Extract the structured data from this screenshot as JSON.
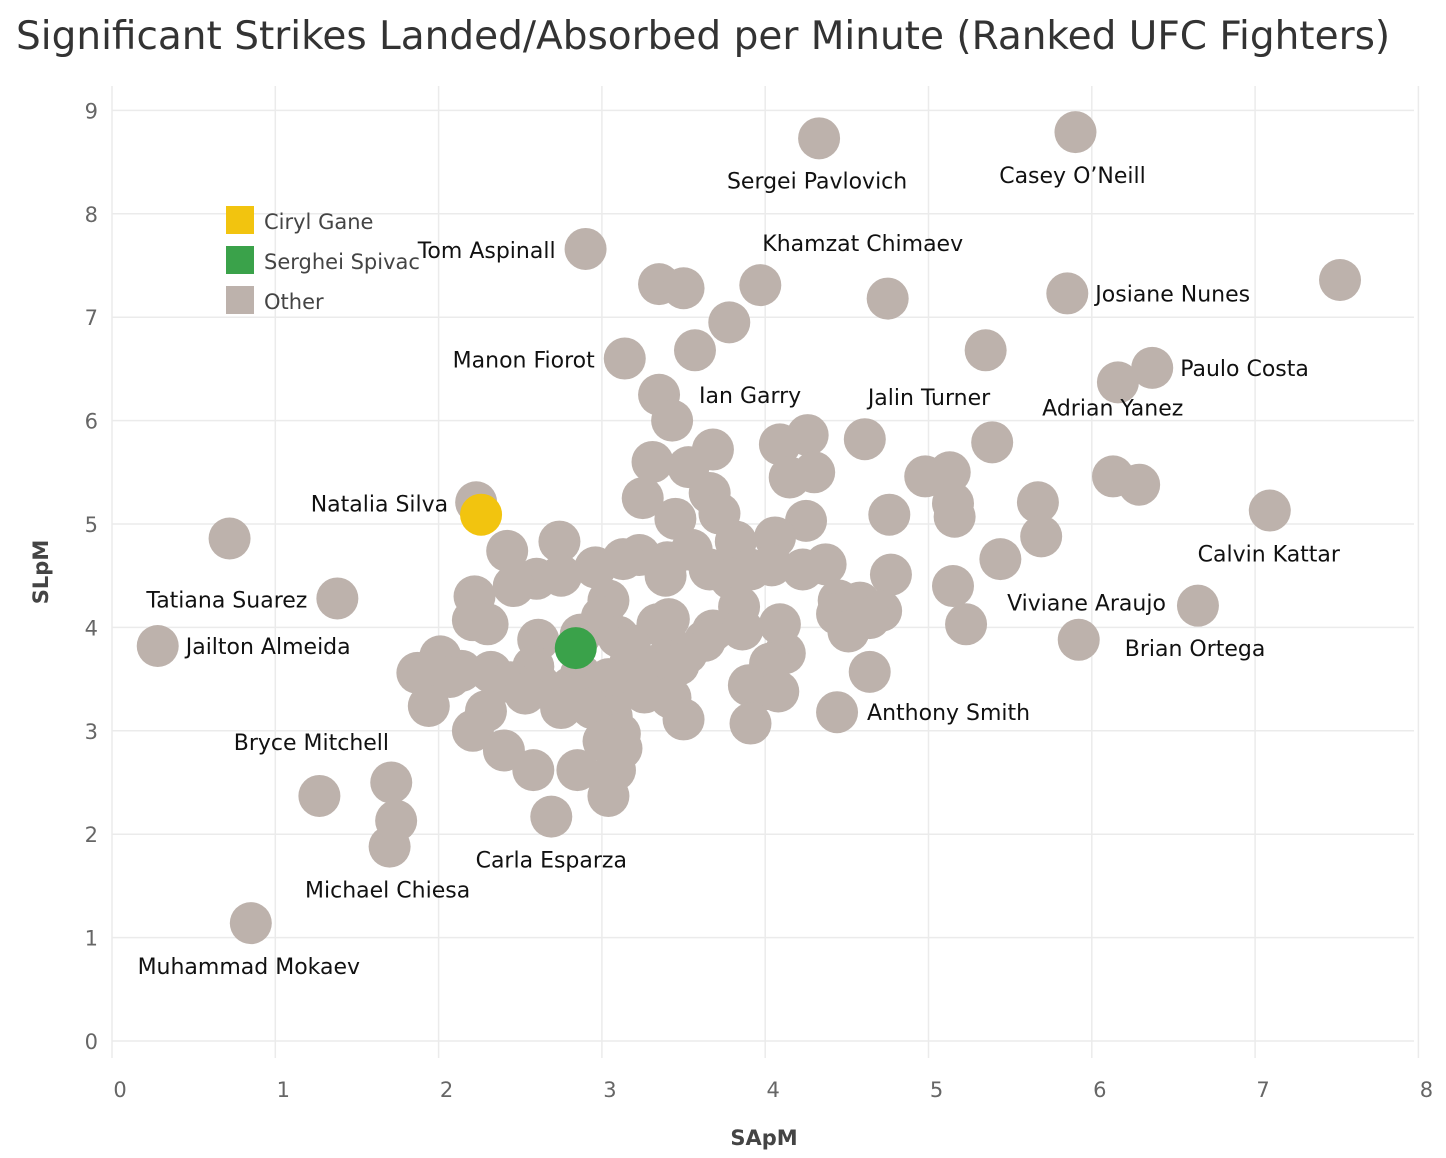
{
  "colors": {
    "Ciryl Gane": "#f2c40f",
    "Serghei Spivac": "#3aa24a",
    "Other": "#bdb2ac",
    "grid": "#ebebeb"
  },
  "chart_data": {
    "type": "scatter",
    "title": "Significant Strikes Landed/Absorbed per Minute (Ranked UFC Fighters)",
    "xlabel": "SApM",
    "ylabel": "SLpM",
    "xlim": [
      0,
      8
    ],
    "ylim": [
      0,
      9
    ],
    "x_ticks": [
      "0",
      "1",
      "2",
      "3",
      "4",
      "5",
      "6",
      "7",
      "8"
    ],
    "y_ticks": [
      "0",
      "1",
      "2",
      "3",
      "4",
      "5",
      "6",
      "7",
      "8",
      "9"
    ],
    "grid": true,
    "legend": {
      "position": "top-left",
      "entries": [
        "Ciryl Gane",
        "Serghei Spivac",
        "Other"
      ]
    },
    "series": [
      {
        "name": "Ciryl Gane",
        "points": [
          {
            "x": 2.26,
            "y": 5.09
          }
        ]
      },
      {
        "name": "Serghei Spivac",
        "points": [
          {
            "x": 2.84,
            "y": 3.8
          }
        ]
      },
      {
        "name": "Other",
        "points": [
          {
            "x": 4.33,
            "y": 8.73,
            "label": "Sergei Pavlovich"
          },
          {
            "x": 5.9,
            "y": 8.79,
            "label": "Casey O’Neill"
          },
          {
            "x": 2.9,
            "y": 7.66,
            "label": "Tom Aspinall"
          },
          {
            "x": 3.97,
            "y": 7.31,
            "label": "Khamzat Chimaev"
          },
          {
            "x": 5.85,
            "y": 7.23,
            "label": "Josiane Nunes"
          },
          {
            "x": 7.52,
            "y": 7.36
          },
          {
            "x": 3.14,
            "y": 6.6,
            "label": "Manon Fiorot"
          },
          {
            "x": 6.37,
            "y": 6.51,
            "label": "Paulo Costa"
          },
          {
            "x": 3.35,
            "y": 6.25,
            "label": "Ian Garry"
          },
          {
            "x": 4.61,
            "y": 5.82,
            "label": "Jalin Turner"
          },
          {
            "x": 5.39,
            "y": 5.79,
            "label": "Adrian Yanez"
          },
          {
            "x": 2.23,
            "y": 5.21,
            "label": "Natalia Silva"
          },
          {
            "x": 7.09,
            "y": 5.13,
            "label": "Calvin Kattar"
          },
          {
            "x": 0.72,
            "y": 4.86
          },
          {
            "x": 1.38,
            "y": 4.28,
            "label": "Tatiana Suarez"
          },
          {
            "x": 6.65,
            "y": 4.21,
            "label": "Viviane Araujo"
          },
          {
            "x": 0.28,
            "y": 3.82,
            "label": "Jailton Almeida"
          },
          {
            "x": 5.92,
            "y": 3.88,
            "label": "Brian Ortega"
          },
          {
            "x": 4.44,
            "y": 3.18,
            "label": "Anthony Smith"
          },
          {
            "x": 1.27,
            "y": 2.37,
            "label": "Bryce Mitchell"
          },
          {
            "x": 2.69,
            "y": 2.17,
            "label": "Carla Esparza"
          },
          {
            "x": 1.7,
            "y": 1.88,
            "label": "Michael Chiesa"
          },
          {
            "x": 0.85,
            "y": 1.14,
            "label": "Muhammad Mokaev"
          },
          {
            "x": 3.35,
            "y": 7.32
          },
          {
            "x": 3.5,
            "y": 7.28
          },
          {
            "x": 4.75,
            "y": 7.18
          },
          {
            "x": 3.78,
            "y": 6.95
          },
          {
            "x": 3.57,
            "y": 6.68
          },
          {
            "x": 5.35,
            "y": 6.68
          },
          {
            "x": 6.16,
            "y": 6.37
          },
          {
            "x": 3.43,
            "y": 6.0
          },
          {
            "x": 4.26,
            "y": 5.86
          },
          {
            "x": 4.09,
            "y": 5.77
          },
          {
            "x": 3.68,
            "y": 5.72
          },
          {
            "x": 4.15,
            "y": 5.45
          },
          {
            "x": 4.3,
            "y": 5.5
          },
          {
            "x": 4.98,
            "y": 5.46
          },
          {
            "x": 5.13,
            "y": 5.5
          },
          {
            "x": 6.13,
            "y": 5.46
          },
          {
            "x": 6.29,
            "y": 5.38
          },
          {
            "x": 3.31,
            "y": 5.6
          },
          {
            "x": 3.53,
            "y": 5.55
          },
          {
            "x": 3.25,
            "y": 5.25
          },
          {
            "x": 3.66,
            "y": 5.3
          },
          {
            "x": 3.72,
            "y": 5.1
          },
          {
            "x": 4.76,
            "y": 5.09
          },
          {
            "x": 5.15,
            "y": 5.2
          },
          {
            "x": 5.16,
            "y": 5.07
          },
          {
            "x": 5.67,
            "y": 5.21
          },
          {
            "x": 5.69,
            "y": 4.88
          },
          {
            "x": 3.45,
            "y": 5.05
          },
          {
            "x": 4.25,
            "y": 5.03
          },
          {
            "x": 4.06,
            "y": 4.87
          },
          {
            "x": 3.82,
            "y": 4.83
          },
          {
            "x": 2.74,
            "y": 4.83
          },
          {
            "x": 2.42,
            "y": 4.74
          },
          {
            "x": 3.23,
            "y": 4.7
          },
          {
            "x": 3.55,
            "y": 4.75
          },
          {
            "x": 3.13,
            "y": 4.66
          },
          {
            "x": 3.4,
            "y": 4.63
          },
          {
            "x": 2.96,
            "y": 4.58
          },
          {
            "x": 4.37,
            "y": 4.61
          },
          {
            "x": 5.44,
            "y": 4.66
          },
          {
            "x": 3.91,
            "y": 4.56
          },
          {
            "x": 4.04,
            "y": 4.6
          },
          {
            "x": 2.75,
            "y": 4.5
          },
          {
            "x": 2.6,
            "y": 4.47
          },
          {
            "x": 3.39,
            "y": 4.5
          },
          {
            "x": 3.66,
            "y": 4.56
          },
          {
            "x": 4.23,
            "y": 4.56
          },
          {
            "x": 4.77,
            "y": 4.51
          },
          {
            "x": 2.46,
            "y": 4.4
          },
          {
            "x": 3.79,
            "y": 4.47
          },
          {
            "x": 5.15,
            "y": 4.4
          },
          {
            "x": 2.22,
            "y": 4.3
          },
          {
            "x": 4.45,
            "y": 4.26
          },
          {
            "x": 4.58,
            "y": 4.24
          },
          {
            "x": 3.04,
            "y": 4.26
          },
          {
            "x": 3.84,
            "y": 4.2
          },
          {
            "x": 4.44,
            "y": 4.13
          },
          {
            "x": 4.71,
            "y": 4.16
          },
          {
            "x": 4.64,
            "y": 4.09
          },
          {
            "x": 2.21,
            "y": 4.07
          },
          {
            "x": 2.3,
            "y": 4.03
          },
          {
            "x": 3.0,
            "y": 4.1
          },
          {
            "x": 3.41,
            "y": 4.08
          },
          {
            "x": 3.34,
            "y": 4.03
          },
          {
            "x": 4.09,
            "y": 4.03
          },
          {
            "x": 5.23,
            "y": 4.03
          },
          {
            "x": 4.51,
            "y": 3.96
          },
          {
            "x": 2.87,
            "y": 3.93
          },
          {
            "x": 3.1,
            "y": 3.91
          },
          {
            "x": 3.68,
            "y": 3.97
          },
          {
            "x": 3.86,
            "y": 3.98
          },
          {
            "x": 2.61,
            "y": 3.88
          },
          {
            "x": 3.63,
            "y": 3.87
          },
          {
            "x": 3.17,
            "y": 3.83
          },
          {
            "x": 4.12,
            "y": 3.75
          },
          {
            "x": 2.01,
            "y": 3.72
          },
          {
            "x": 3.52,
            "y": 3.75
          },
          {
            "x": 4.03,
            "y": 3.65
          },
          {
            "x": 3.39,
            "y": 3.68
          },
          {
            "x": 3.17,
            "y": 3.64
          },
          {
            "x": 1.87,
            "y": 3.56
          },
          {
            "x": 2.14,
            "y": 3.58
          },
          {
            "x": 2.32,
            "y": 3.57
          },
          {
            "x": 2.07,
            "y": 3.52
          },
          {
            "x": 2.58,
            "y": 3.62
          },
          {
            "x": 2.87,
            "y": 3.54
          },
          {
            "x": 3.04,
            "y": 3.5
          },
          {
            "x": 3.31,
            "y": 3.56
          },
          {
            "x": 3.47,
            "y": 3.64
          },
          {
            "x": 4.64,
            "y": 3.57
          },
          {
            "x": 2.44,
            "y": 3.47
          },
          {
            "x": 2.62,
            "y": 3.44
          },
          {
            "x": 2.81,
            "y": 3.42
          },
          {
            "x": 3.15,
            "y": 3.44
          },
          {
            "x": 3.9,
            "y": 3.44
          },
          {
            "x": 3.99,
            "y": 3.4
          },
          {
            "x": 4.08,
            "y": 3.38
          },
          {
            "x": 2.53,
            "y": 3.36
          },
          {
            "x": 2.74,
            "y": 3.35
          },
          {
            "x": 3.26,
            "y": 3.37
          },
          {
            "x": 3.42,
            "y": 3.32
          },
          {
            "x": 1.94,
            "y": 3.24
          },
          {
            "x": 2.29,
            "y": 3.19
          },
          {
            "x": 2.75,
            "y": 3.22
          },
          {
            "x": 2.94,
            "y": 3.22
          },
          {
            "x": 3.06,
            "y": 3.14
          },
          {
            "x": 3.5,
            "y": 3.11
          },
          {
            "x": 3.91,
            "y": 3.07
          },
          {
            "x": 2.21,
            "y": 3.0
          },
          {
            "x": 3.11,
            "y": 2.97
          },
          {
            "x": 3.01,
            "y": 2.9
          },
          {
            "x": 3.12,
            "y": 2.83
          },
          {
            "x": 2.4,
            "y": 2.81
          },
          {
            "x": 2.58,
            "y": 2.62
          },
          {
            "x": 2.85,
            "y": 2.62
          },
          {
            "x": 3.08,
            "y": 2.62
          },
          {
            "x": 1.71,
            "y": 2.5
          },
          {
            "x": 3.04,
            "y": 2.37
          },
          {
            "x": 1.74,
            "y": 2.13
          }
        ]
      }
    ]
  }
}
